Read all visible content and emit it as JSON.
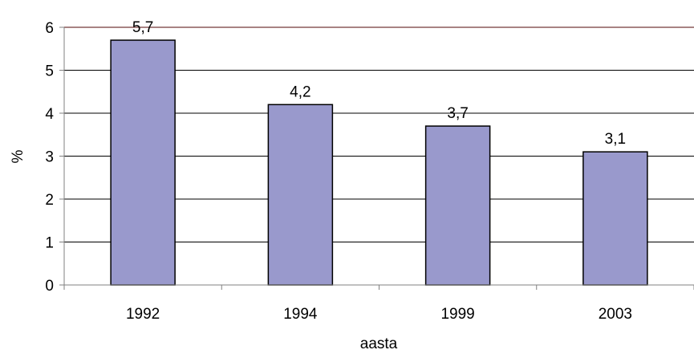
{
  "chart_data": {
    "type": "bar",
    "categories": [
      "1992",
      "1994",
      "1999",
      "2003"
    ],
    "values": [
      5.7,
      4.2,
      3.7,
      3.1
    ],
    "data_labels": [
      "5,7",
      "4,2",
      "3,7",
      "3,1"
    ],
    "title": "",
    "xlabel": "aasta",
    "ylabel": "%",
    "ylim": [
      0,
      6
    ],
    "yticks": [
      0,
      1,
      2,
      3,
      4,
      5,
      6
    ],
    "grid": true,
    "legend": "none",
    "colors": {
      "bar_fill": "#9999cc",
      "bar_stroke": "#000000",
      "grid": "#000000",
      "top_border": "#8b5a5a",
      "axis": "#808080"
    }
  }
}
